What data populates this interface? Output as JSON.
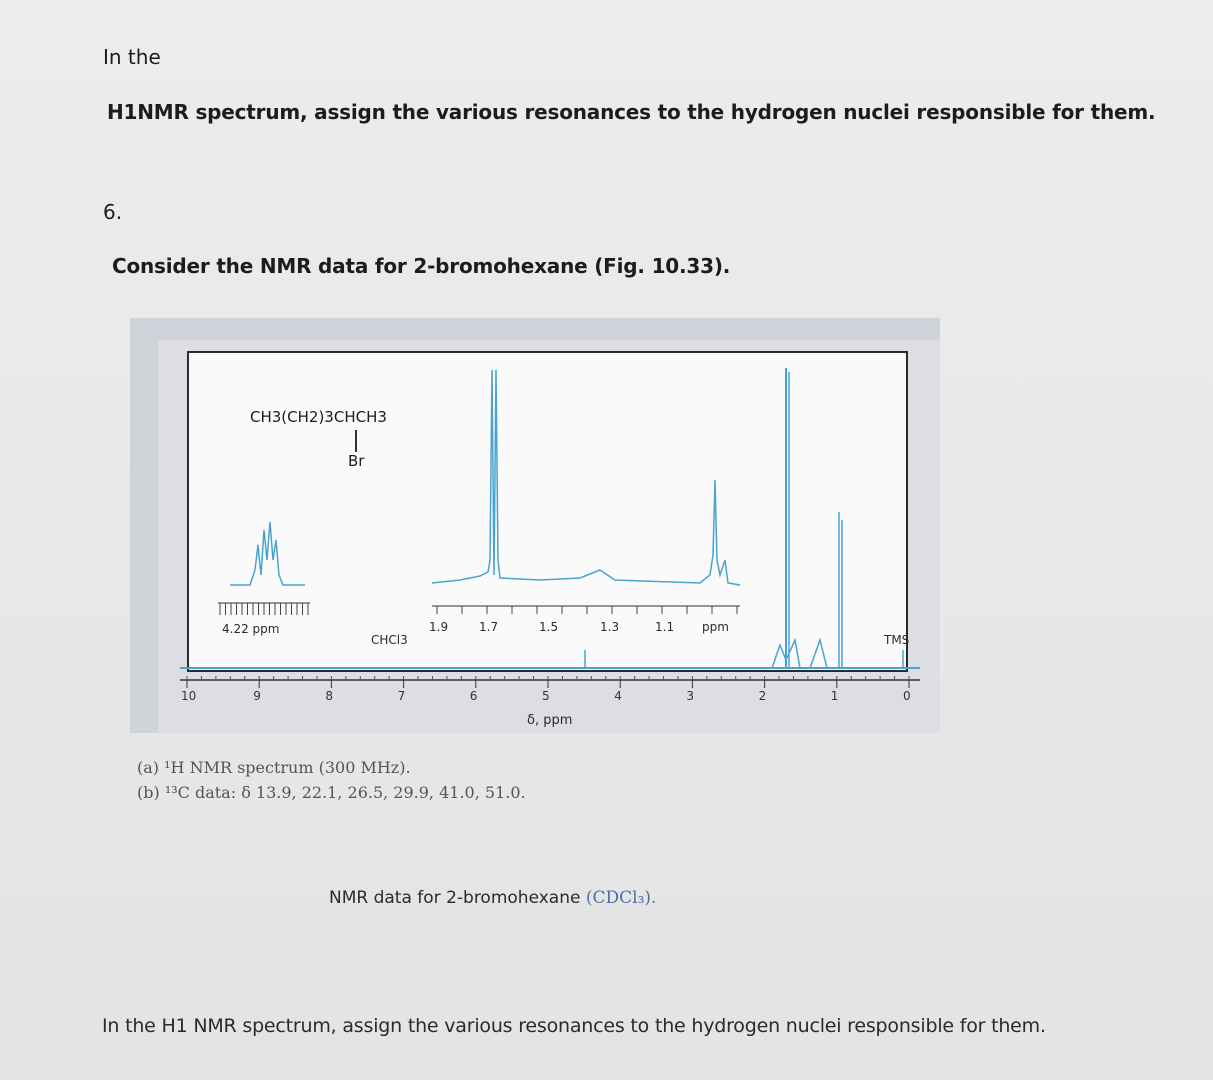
{
  "intro": "In the",
  "question_line": "H1NMR spectrum, assign the various resonances to the hydrogen nuclei responsible for them.",
  "number": "6.",
  "consider": "Consider the NMR data for 2-bromohexane (Fig. 10.33).",
  "figure": {
    "molecule_formula": "CH3(CH2)3CHCH3",
    "molecule_substituent": "Br",
    "inset_left_label": "4.22  ppm",
    "chcl3_label": "CHCl3",
    "inset_right_ticks": [
      "1.9",
      "1.7",
      "1.5",
      "1.3",
      "1.1",
      "ppm"
    ],
    "tms_label": "TMS",
    "main_axis_ticks": [
      "10",
      "9",
      "8",
      "7",
      "6",
      "5",
      "4",
      "3",
      "2",
      "1",
      "0"
    ],
    "axis_title": "δ, ppm",
    "caption_a": "(a) ¹H NMR spectrum (300 MHz).",
    "caption_b": "(b) ¹³C data: δ 13.9, 22.1, 26.5, 29.9, 41.0, 51.0.",
    "figure_caption": "NMR data for 2-bromohexane",
    "figure_caption_solvent": "(CDCl₃)."
  },
  "bottom_line": "In the  H1 NMR spectrum, assign the various resonances to the hydrogen nuclei responsible for them.",
  "colors": {
    "spectrum_line": "#4aa3cf",
    "text": "#1c1c1c"
  }
}
